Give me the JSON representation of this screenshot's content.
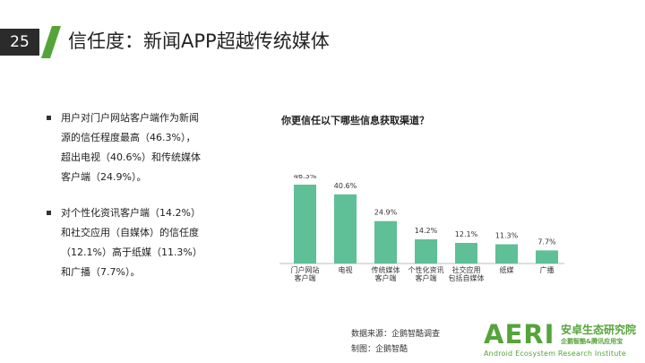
{
  "header": {
    "page_number": "25",
    "title": "信任度：新闻APP超越传统媒体"
  },
  "bullets": [
    {
      "lines": [
        "用户对门户网站客户端作为新闻",
        "源的信任程度最高（46.3%），",
        "超出电视（40.6%）和传统媒体",
        "客户端（24.9%）。"
      ]
    },
    {
      "lines": [
        "对个性化资讯客户端（14.2%）",
        "和社交应用（自媒体）的信任度",
        "（12.1%）高于纸媒（11.3%）",
        "和广播（7.7%）。"
      ]
    }
  ],
  "chart_data": {
    "type": "bar",
    "title": "你更信任以下哪些信息获取渠道？",
    "categories": [
      [
        "门户网站",
        "客户端"
      ],
      [
        "电视"
      ],
      [
        "传统媒体",
        "客户端"
      ],
      [
        "个性化资讯",
        "客户端"
      ],
      [
        "社交应用",
        "包括自媒体"
      ],
      [
        "纸媒"
      ],
      [
        "广播"
      ]
    ],
    "values": [
      46.3,
      40.6,
      24.9,
      14.2,
      12.1,
      11.3,
      7.7
    ],
    "value_labels": [
      "46.3%",
      "40.6%",
      "24.9%",
      "14.2%",
      "12.1%",
      "11.3%",
      "7.7%"
    ],
    "ylim": [
      0,
      50
    ],
    "grid": false,
    "bar_color": "#5fbf96"
  },
  "footer": {
    "source": "数据来源：企鹅智酷调查",
    "made_by": "制图：企鹅智酷"
  },
  "logo": {
    "letters": "AERI",
    "cn_name": "安卓生态研究院",
    "cn_sub": "企鹅智酷&腾讯应用宝",
    "en_name": "Android Ecosystem Research Institute"
  },
  "colors": {
    "accent": "#55a43a",
    "bar": "#5fbf96",
    "page_badge": "#2b2b2b"
  }
}
